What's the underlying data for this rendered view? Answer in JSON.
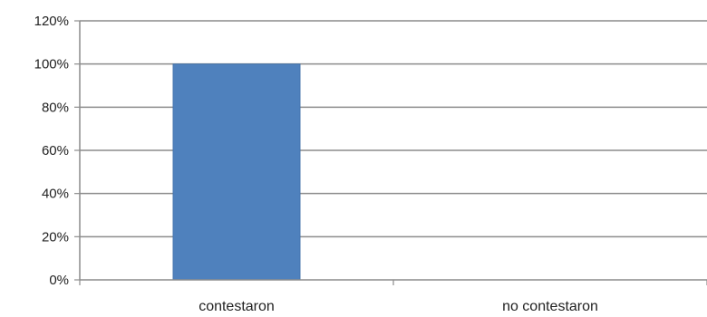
{
  "chart_data": {
    "type": "bar",
    "categories": [
      "contestaron",
      "no contestaron"
    ],
    "values": [
      100,
      0
    ],
    "ylim": [
      0,
      120
    ],
    "yticks": [
      0,
      20,
      40,
      60,
      80,
      100,
      120
    ],
    "ytick_labels": [
      "0%",
      "20%",
      "40%",
      "60%",
      "80%",
      "100%",
      "120%"
    ],
    "grid": true,
    "legend": "none",
    "title": "",
    "xlabel": "",
    "ylabel": "",
    "colors": {
      "bar": "#4f81bd",
      "bar_edge": "#3f6fa8",
      "grid": "#8c8c8c",
      "axis": "#8c8c8c",
      "text": "#222222"
    }
  }
}
